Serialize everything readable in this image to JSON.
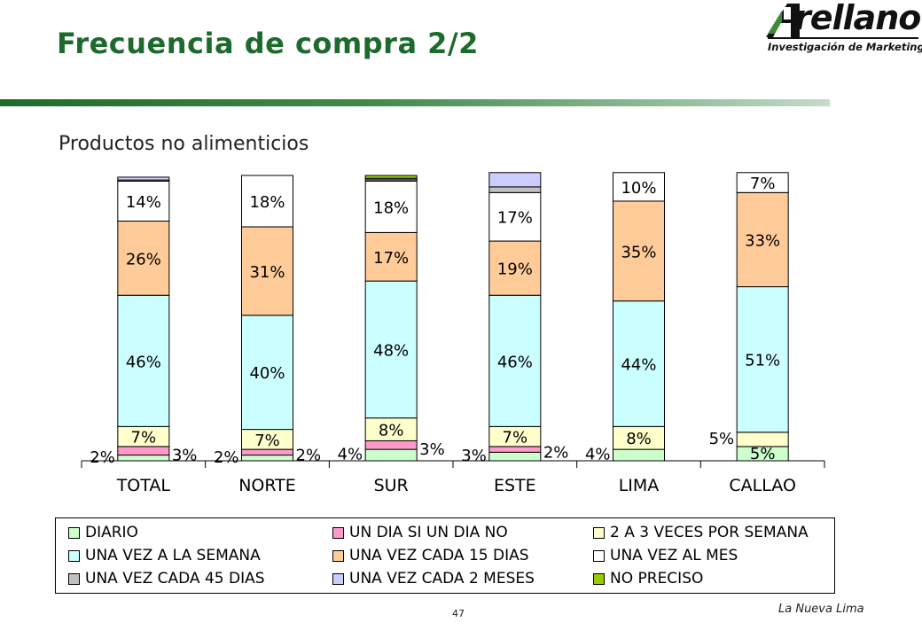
{
  "header": {
    "title": "Frecuencia de compra 2/2",
    "subtitle": "Productos no alimenticios"
  },
  "logo": {
    "brand": "Arellano",
    "wordmark": "rellano",
    "tagline": "Investigación de Marketing"
  },
  "footer": {
    "page_number": "47",
    "note": "La Nueva Lima"
  },
  "chart_data": {
    "type": "bar",
    "stacked": true,
    "categories": [
      "TOTAL",
      "NORTE",
      "SUR",
      "ESTE",
      "LIMA",
      "CALLAO"
    ],
    "ylim": [
      0,
      100
    ],
    "grid": false,
    "legend_position": "bottom",
    "series": [
      {
        "name": "DIARIO",
        "color": "#ccffcc",
        "values": [
          2,
          2,
          4,
          3,
          4,
          5
        ],
        "labels": [
          "2%",
          "2%",
          "4%",
          "3%",
          "4%",
          "5%"
        ],
        "label_pos": [
          "left",
          "left",
          "left",
          "left",
          "left",
          "inside"
        ]
      },
      {
        "name": "UN DIA SI UN DIA NO",
        "color": "#ff99cc",
        "values": [
          3,
          2,
          3,
          2,
          0,
          0
        ],
        "labels": [
          "3%",
          "2%",
          "3%",
          "2%",
          "",
          ""
        ],
        "label_pos": [
          "right",
          "right",
          "right",
          "right",
          "",
          ""
        ]
      },
      {
        "name": "2 A 3 VECES POR SEMANA",
        "color": "#ffffcc",
        "values": [
          7,
          7,
          8,
          7,
          8,
          5
        ],
        "labels": [
          "7%",
          "7%",
          "8%",
          "7%",
          "8%",
          "5%"
        ],
        "label_pos": [
          "inside",
          "inside",
          "inside",
          "inside",
          "inside",
          "left"
        ]
      },
      {
        "name": "UNA VEZ A LA SEMANA",
        "color": "#ccffff",
        "values": [
          46,
          40,
          48,
          46,
          44,
          51
        ],
        "labels": [
          "46%",
          "40%",
          "48%",
          "46%",
          "44%",
          "51%"
        ],
        "label_pos": [
          "inside",
          "inside",
          "inside",
          "inside",
          "inside",
          "inside"
        ]
      },
      {
        "name": "UNA VEZ CADA 15 DIAS",
        "color": "#ffcc99",
        "values": [
          26,
          31,
          17,
          19,
          35,
          33
        ],
        "labels": [
          "26%",
          "31%",
          "17%",
          "19%",
          "35%",
          "33%"
        ],
        "label_pos": [
          "inside",
          "inside",
          "inside",
          "inside",
          "inside",
          "inside"
        ]
      },
      {
        "name": "UNA VEZ AL MES",
        "color": "#ffffff",
        "values": [
          14,
          18,
          18,
          17,
          10,
          7
        ],
        "labels": [
          "14%",
          "18%",
          "18%",
          "17%",
          "10%",
          "7%"
        ],
        "label_pos": [
          "inside",
          "inside",
          "inside",
          "inside",
          "inside",
          "inside"
        ]
      },
      {
        "name": "UNA VEZ CADA 45 DIAS",
        "color": "#c0c0c0",
        "values": [
          0.4,
          0,
          0.5,
          2,
          0,
          0
        ],
        "labels": [
          "",
          "",
          "",
          "",
          "",
          ""
        ],
        "label_pos": [
          "",
          "",
          "",
          "",
          "",
          ""
        ]
      },
      {
        "name": "UNA VEZ CADA 2 MESES",
        "color": "#ccccff",
        "values": [
          1,
          0,
          0.5,
          5,
          0,
          0
        ],
        "labels": [
          "",
          "",
          "",
          "",
          "",
          ""
        ],
        "label_pos": [
          "",
          "",
          "",
          "",
          "",
          ""
        ]
      },
      {
        "name": "NO PRECISO",
        "color": "#99cc00",
        "values": [
          0,
          0,
          1,
          0,
          0,
          0
        ],
        "labels": [
          "",
          "",
          "",
          "",
          "",
          ""
        ],
        "label_pos": [
          "",
          "",
          "",
          "",
          "",
          ""
        ]
      }
    ]
  }
}
